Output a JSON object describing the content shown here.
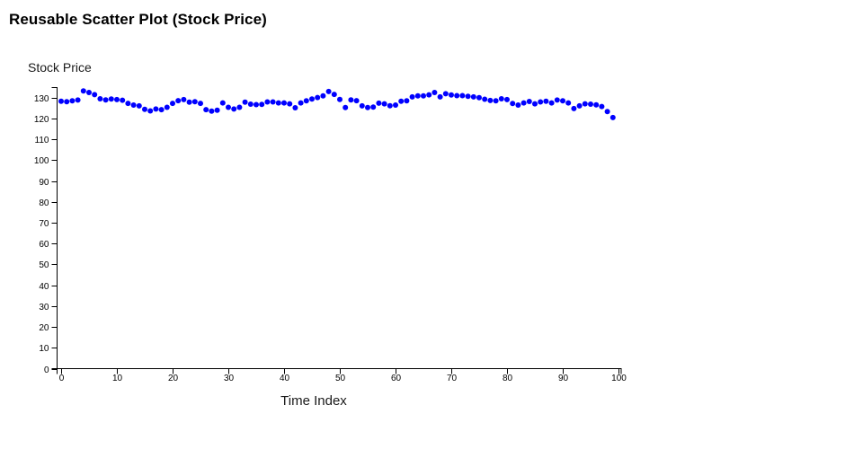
{
  "header": {
    "title": "Reusable Scatter Plot (Stock Price)"
  },
  "chart_data": {
    "type": "scatter",
    "title": "Reusable Scatter Plot (Stock Price)",
    "xlabel": "Time Index",
    "ylabel": "Stock Price",
    "xlim": [
      0,
      100
    ],
    "ylim": [
      0,
      135
    ],
    "x_ticks": [
      0,
      10,
      20,
      30,
      40,
      50,
      60,
      70,
      80,
      90,
      100
    ],
    "y_ticks": [
      0,
      10,
      20,
      30,
      40,
      50,
      60,
      70,
      80,
      90,
      100,
      110,
      120,
      130
    ],
    "grid": false,
    "legend": false,
    "point_color": "#0000ff",
    "axis_color": "#000000",
    "x": [
      0,
      1,
      2,
      3,
      4,
      5,
      6,
      7,
      8,
      9,
      10,
      11,
      12,
      13,
      14,
      15,
      16,
      17,
      18,
      19,
      20,
      21,
      22,
      23,
      24,
      25,
      26,
      27,
      28,
      29,
      30,
      31,
      32,
      33,
      34,
      35,
      36,
      37,
      38,
      39,
      40,
      41,
      42,
      43,
      44,
      45,
      46,
      47,
      48,
      49,
      50,
      51,
      52,
      53,
      54,
      55,
      56,
      57,
      58,
      59,
      60,
      61,
      62,
      63,
      64,
      65,
      66,
      67,
      68,
      69,
      70,
      71,
      72,
      73,
      74,
      75,
      76,
      77,
      78,
      79,
      80,
      81,
      82,
      83,
      84,
      85,
      86,
      87,
      88,
      89,
      90,
      91,
      92,
      93,
      94,
      95,
      96,
      97,
      98,
      99
    ],
    "y": [
      128.2,
      128.0,
      128.4,
      128.8,
      133.2,
      132.4,
      131.4,
      129.4,
      128.9,
      129.3,
      129.0,
      128.7,
      127.2,
      126.4,
      126.0,
      124.3,
      123.6,
      124.5,
      124.2,
      125.3,
      127.2,
      128.5,
      129.0,
      127.8,
      128.0,
      127.2,
      124.2,
      123.5,
      123.9,
      127.4,
      125.3,
      124.5,
      125.3,
      127.8,
      126.8,
      126.6,
      126.7,
      127.9,
      127.9,
      127.4,
      127.4,
      127.0,
      125.1,
      127.4,
      128.4,
      129.3,
      130.0,
      130.8,
      132.9,
      131.5,
      129.1,
      125.2,
      128.9,
      128.5,
      126.0,
      125.2,
      125.4,
      127.3,
      127.0,
      126.1,
      126.4,
      128.2,
      128.4,
      130.3,
      130.8,
      130.8,
      131.3,
      132.4,
      130.3,
      131.8,
      131.2,
      130.9,
      130.9,
      130.6,
      130.3,
      129.9,
      129.2,
      128.6,
      128.4,
      129.4,
      129.0,
      127.1,
      126.4,
      127.4,
      128.1,
      127.0,
      127.9,
      128.2,
      127.4,
      128.8,
      128.4,
      127.4,
      124.7,
      126.0,
      127.0,
      126.8,
      126.5,
      125.7,
      123.3,
      120.4
    ]
  }
}
